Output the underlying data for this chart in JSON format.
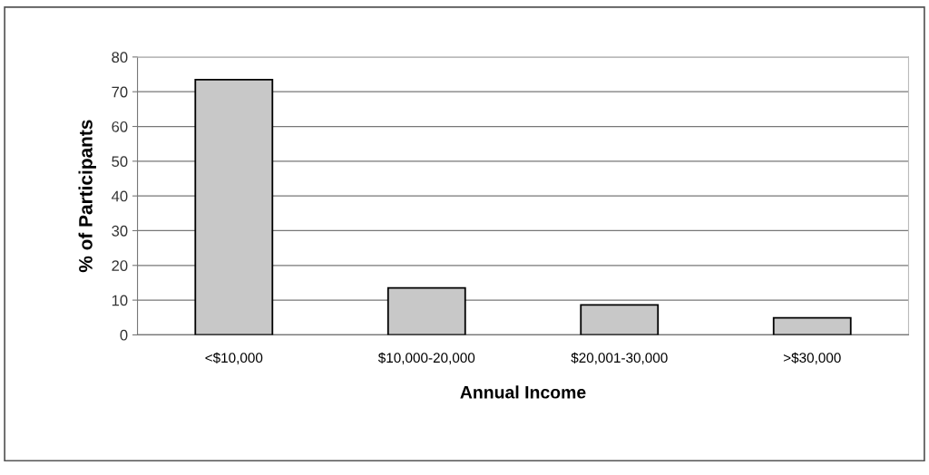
{
  "chart_data": {
    "type": "bar",
    "xlabel": "Annual Income",
    "ylabel": "% of Participants",
    "categories": [
      "<$10,000",
      "$10,000-20,000",
      "$20,001-30,000",
      ">$30,000"
    ],
    "values": [
      73.5,
      13.5,
      8.6,
      4.9
    ],
    "color": "#c8c8c8",
    "ylim": [
      0,
      80
    ],
    "yticks": [
      0,
      10,
      20,
      30,
      40,
      50,
      60,
      70,
      80
    ],
    "grid": "y",
    "legend": false
  }
}
